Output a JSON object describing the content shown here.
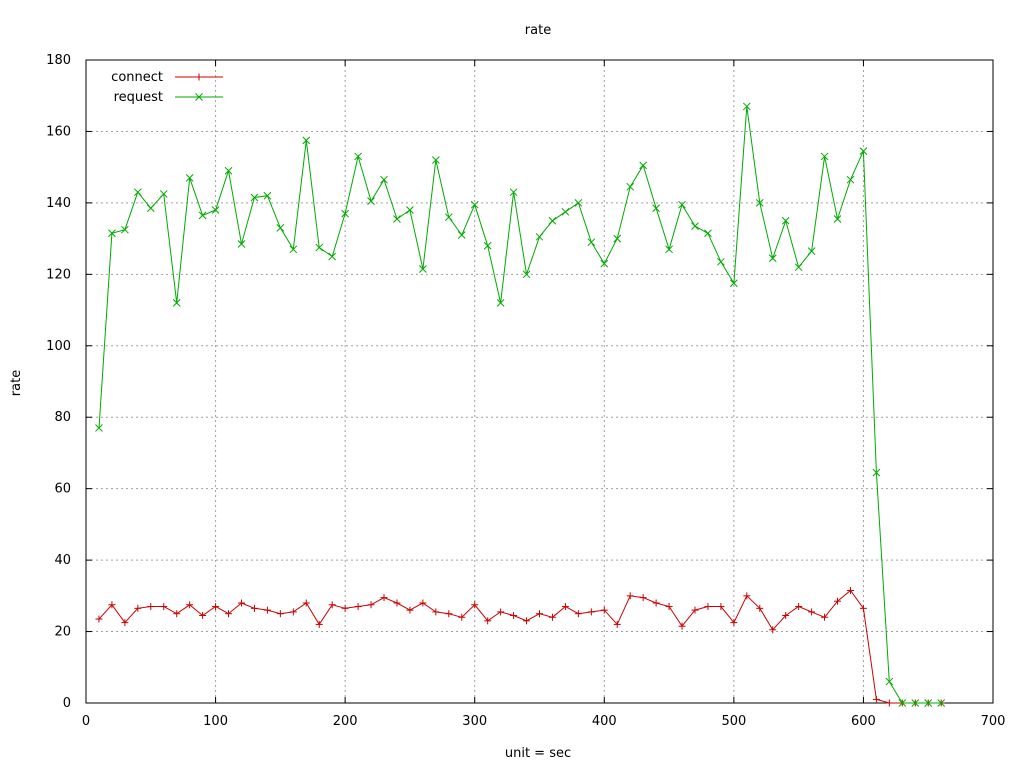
{
  "chart_data": {
    "type": "line",
    "title": "rate",
    "xlabel": "unit = sec",
    "ylabel": "rate",
    "xlim": [
      0,
      700
    ],
    "ylim": [
      0,
      180
    ],
    "xticks": [
      0,
      100,
      200,
      300,
      400,
      500,
      600,
      700
    ],
    "yticks": [
      0,
      20,
      40,
      60,
      80,
      100,
      120,
      140,
      160,
      180
    ],
    "grid": true,
    "legend_position": "top-left",
    "series": [
      {
        "name": "connect",
        "color": "#cc0000",
        "marker": "plus",
        "points": [
          [
            10,
            23.5
          ],
          [
            20,
            27.5
          ],
          [
            30,
            22.5
          ],
          [
            40,
            26.5
          ],
          [
            50,
            27
          ],
          [
            60,
            27
          ],
          [
            70,
            25
          ],
          [
            80,
            27.5
          ],
          [
            90,
            24.5
          ],
          [
            100,
            27
          ],
          [
            110,
            25
          ],
          [
            120,
            28
          ],
          [
            130,
            26.5
          ],
          [
            140,
            26
          ],
          [
            150,
            25
          ],
          [
            160,
            25.5
          ],
          [
            170,
            28
          ],
          [
            180,
            22
          ],
          [
            190,
            27.5
          ],
          [
            200,
            26.5
          ],
          [
            210,
            27
          ],
          [
            220,
            27.5
          ],
          [
            230,
            29.5
          ],
          [
            240,
            28
          ],
          [
            250,
            26
          ],
          [
            260,
            28
          ],
          [
            270,
            25.5
          ],
          [
            280,
            25
          ],
          [
            290,
            24
          ],
          [
            300,
            27.5
          ],
          [
            310,
            23
          ],
          [
            320,
            25.5
          ],
          [
            330,
            24.5
          ],
          [
            340,
            23
          ],
          [
            350,
            25
          ],
          [
            360,
            24
          ],
          [
            370,
            27
          ],
          [
            380,
            25
          ],
          [
            390,
            25.5
          ],
          [
            400,
            26
          ],
          [
            410,
            22
          ],
          [
            420,
            30
          ],
          [
            430,
            29.5
          ],
          [
            440,
            28
          ],
          [
            450,
            27
          ],
          [
            460,
            21.5
          ],
          [
            470,
            26
          ],
          [
            480,
            27
          ],
          [
            490,
            27
          ],
          [
            500,
            22.5
          ],
          [
            510,
            30
          ],
          [
            520,
            26.5
          ],
          [
            530,
            20.5
          ],
          [
            540,
            24.5
          ],
          [
            550,
            27
          ],
          [
            560,
            25.5
          ],
          [
            570,
            24
          ],
          [
            580,
            28.5
          ],
          [
            590,
            31.5
          ],
          [
            600,
            26.5
          ],
          [
            610,
            1
          ],
          [
            620,
            0
          ],
          [
            630,
            0
          ],
          [
            640,
            0
          ],
          [
            650,
            0
          ],
          [
            660,
            0
          ]
        ]
      },
      {
        "name": "request",
        "color": "#00aa00",
        "marker": "cross",
        "points": [
          [
            10,
            77
          ],
          [
            20,
            131.5
          ],
          [
            30,
            132.5
          ],
          [
            40,
            143
          ],
          [
            50,
            138.5
          ],
          [
            60,
            142.5
          ],
          [
            70,
            112
          ],
          [
            80,
            147
          ],
          [
            90,
            136.5
          ],
          [
            100,
            138
          ],
          [
            110,
            149
          ],
          [
            120,
            128.5
          ],
          [
            130,
            141.5
          ],
          [
            140,
            142
          ],
          [
            150,
            133
          ],
          [
            160,
            127
          ],
          [
            170,
            157.5
          ],
          [
            180,
            127.5
          ],
          [
            190,
            125
          ],
          [
            200,
            137
          ],
          [
            210,
            153
          ],
          [
            220,
            140.5
          ],
          [
            230,
            146.5
          ],
          [
            240,
            135.5
          ],
          [
            250,
            138
          ],
          [
            260,
            121.5
          ],
          [
            270,
            152
          ],
          [
            280,
            136
          ],
          [
            290,
            131
          ],
          [
            300,
            139.5
          ],
          [
            310,
            128
          ],
          [
            320,
            112
          ],
          [
            330,
            143
          ],
          [
            340,
            120
          ],
          [
            350,
            130.5
          ],
          [
            360,
            135
          ],
          [
            370,
            137.5
          ],
          [
            380,
            140
          ],
          [
            390,
            129
          ],
          [
            400,
            123
          ],
          [
            410,
            130
          ],
          [
            420,
            144.5
          ],
          [
            430,
            150.5
          ],
          [
            440,
            138.5
          ],
          [
            450,
            127
          ],
          [
            460,
            139.5
          ],
          [
            470,
            133.5
          ],
          [
            480,
            131.5
          ],
          [
            490,
            123.5
          ],
          [
            500,
            117.5
          ],
          [
            510,
            167
          ],
          [
            520,
            140
          ],
          [
            530,
            124.5
          ],
          [
            540,
            135
          ],
          [
            550,
            122
          ],
          [
            560,
            126.5
          ],
          [
            570,
            153
          ],
          [
            580,
            135.5
          ],
          [
            590,
            146.5
          ],
          [
            600,
            154.5
          ],
          [
            610,
            64.5
          ],
          [
            620,
            6
          ],
          [
            630,
            0
          ],
          [
            640,
            0
          ],
          [
            650,
            0
          ],
          [
            660,
            0
          ]
        ]
      }
    ]
  }
}
